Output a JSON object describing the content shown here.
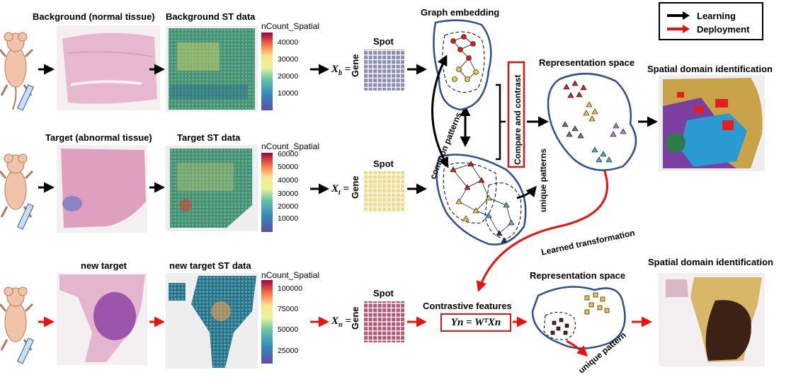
{
  "legend": {
    "learning": "Learning",
    "deployment": "Deployment",
    "learning_color": "#000000",
    "deployment_color": "#e8120f"
  },
  "rows": {
    "background": {
      "tissue_title": "Background (normal tissue)",
      "st_title": "Background ST data",
      "colorbar_title": "nCount_Spatial",
      "colorbar_ticks": [
        "40000",
        "30000",
        "20000",
        "10000"
      ],
      "matrix_symbol": "X",
      "matrix_sub": "b"
    },
    "target": {
      "tissue_title": "Target (abnormal tissue)",
      "st_title": "Target ST data",
      "colorbar_title": "nCount_Spatial",
      "colorbar_ticks": [
        "60000",
        "50000",
        "40000",
        "30000",
        "20000",
        "10000"
      ],
      "matrix_symbol": "X",
      "matrix_sub": "t"
    },
    "new_target": {
      "tissue_title": "new target",
      "st_title": "new target ST data",
      "colorbar_title": "nCount_Spatial",
      "colorbar_ticks": [
        "100000",
        "75000",
        "50000",
        "25000"
      ],
      "matrix_symbol": "X",
      "matrix_sub": "n"
    }
  },
  "matrix": {
    "spot_label": "Spot",
    "gene_label": "Gene",
    "equals": "="
  },
  "graph": {
    "title": "Graph embedding",
    "common_patterns": "common patterns",
    "unique_patterns": "unique patterns",
    "compare_contrast": "Compare and contrast",
    "learned_transformation": "Learned transformation"
  },
  "representation": {
    "title_top": "Representation space",
    "title_bottom": "Representation space",
    "unique_pattern": "unique pattern"
  },
  "output": {
    "title_top": "Spatial domain identification",
    "title_bottom": "Spatial domain identification"
  },
  "contrastive": {
    "title": "Contrastive features",
    "formula": "Yn = WᵀXn"
  },
  "colors": {
    "accent_red": "#e8120f",
    "outline_blue": "#2f4f8a",
    "cluster_red": "#d42020",
    "cluster_yellow": "#f0c040"
  }
}
